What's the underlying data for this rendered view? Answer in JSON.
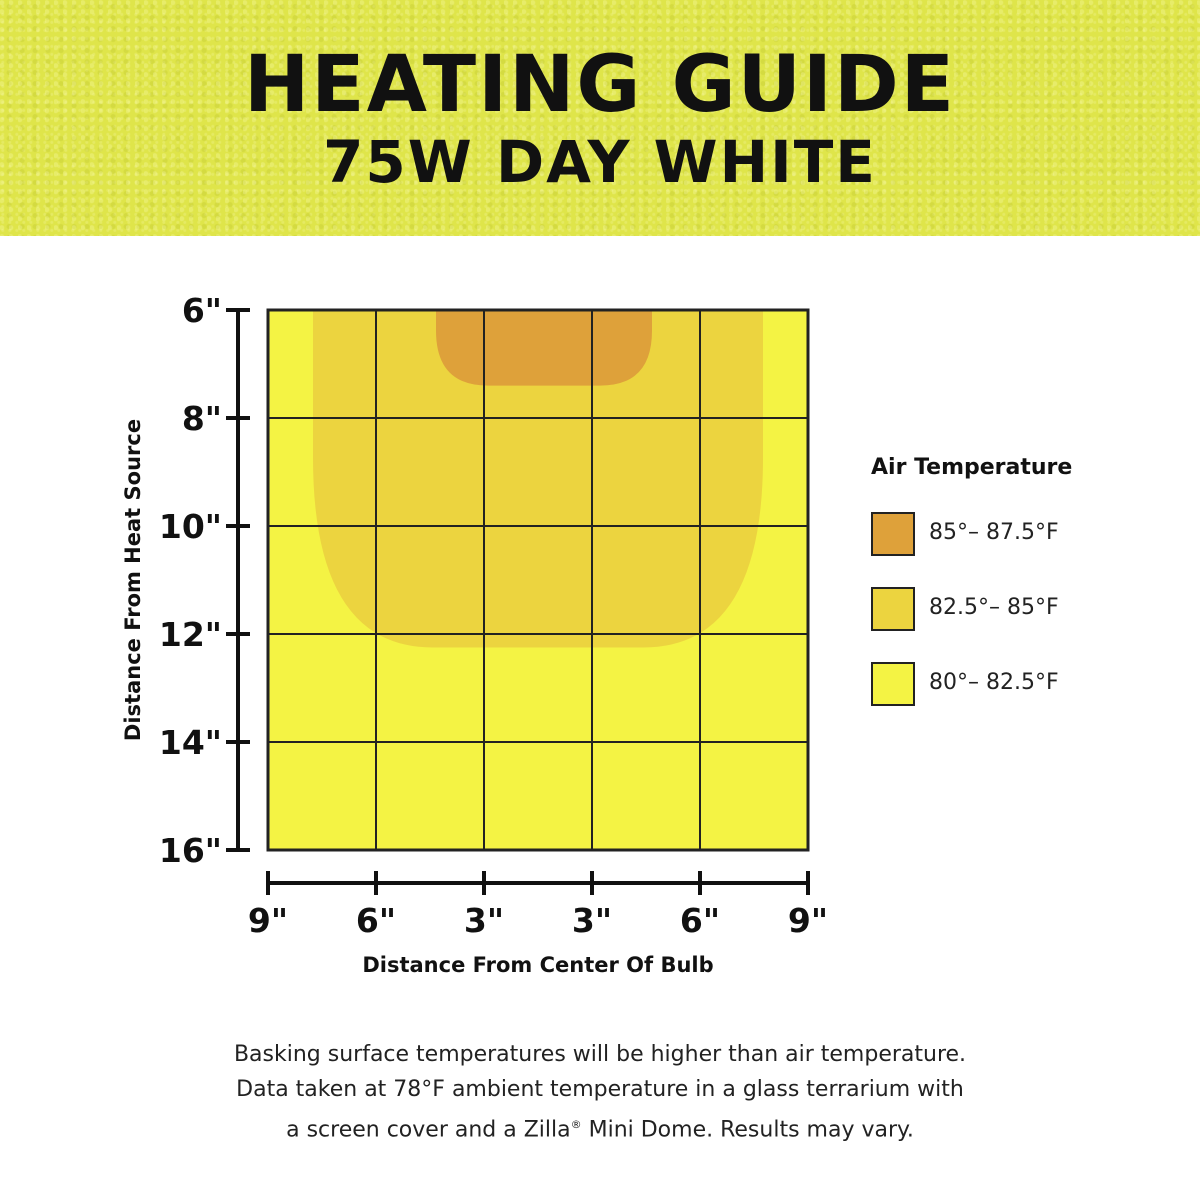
{
  "header": {
    "title": "HEATING GUIDE",
    "subtitle": "75W DAY WHITE",
    "banner_color": "#dfe54a"
  },
  "chart_data": {
    "type": "heatmap",
    "title": "HEATING GUIDE",
    "subtitle": "75W DAY WHITE",
    "xlabel": "Distance From Center Of Bulb",
    "ylabel": "Distance From Heat Source",
    "x_ticks": [
      "9\"",
      "6\"",
      "3\"",
      "3\"",
      "6\"",
      "9\""
    ],
    "y_ticks": [
      "6\"",
      "8\"",
      "10\"",
      "12\"",
      "14\"",
      "16\""
    ],
    "x_range_inches": [
      -9,
      9
    ],
    "y_range_inches": [
      6,
      16
    ],
    "grid": true,
    "legend_title": "Air Temperature",
    "legend_position": "right",
    "zones": [
      {
        "label": "85°– 87.5°F",
        "color": "#dea13a",
        "x_from": -3.4,
        "x_to": 3.8,
        "depth_to": 7.4
      },
      {
        "label": "82.5°– 85°F",
        "color": "#ecd43f",
        "x_from": -7.5,
        "x_to": 7.5,
        "depth_to": 12.25
      },
      {
        "label": "80°– 82.5°F",
        "color": "#f4f344",
        "x_from": -9,
        "x_to": 9,
        "depth_to": 16
      }
    ]
  },
  "footnote": {
    "line1": "Basking surface temperatures will be higher than air temperature.",
    "line2": "Data taken at 78°F ambient temperature in a glass terrarium with",
    "line3_before": "a screen cover and a Zilla",
    "line3_reg": "®",
    "line3_after": " Mini Dome. Results may vary."
  }
}
